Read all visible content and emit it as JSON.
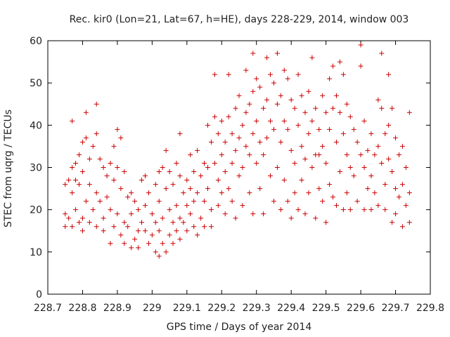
{
  "chart_data": {
    "type": "scatter",
    "title": "Rec. kir0 (Lon=21, Lat=67, h=HE), days 228-229, 2014, window 003",
    "xlabel": "GPS time / Days of year 2014",
    "ylabel": "STEC from uqrg / TECUs",
    "xlim": [
      228.7,
      229.8
    ],
    "ylim": [
      0,
      60
    ],
    "x_ticks": [
      "228.7",
      "228.8",
      "228.9",
      "229",
      "229.1",
      "229.2",
      "229.3",
      "229.4",
      "229.5",
      "229.6",
      "229.7",
      "229.8"
    ],
    "y_ticks": [
      "0",
      "10",
      "20",
      "30",
      "40",
      "50",
      "60"
    ],
    "grid": false,
    "marker": "+",
    "color": "#cc0000",
    "series": [
      {
        "points": [
          [
            228.75,
            26
          ],
          [
            228.75,
            19
          ],
          [
            228.75,
            16
          ],
          [
            228.76,
            27
          ],
          [
            228.76,
            18
          ],
          [
            228.77,
            41
          ],
          [
            228.77,
            30
          ],
          [
            228.77,
            24
          ],
          [
            228.77,
            16
          ],
          [
            228.78,
            31
          ],
          [
            228.78,
            27
          ],
          [
            228.78,
            20
          ],
          [
            228.79,
            33
          ],
          [
            228.79,
            26
          ],
          [
            228.79,
            17
          ],
          [
            228.8,
            36
          ],
          [
            228.8,
            29
          ],
          [
            228.8,
            18
          ],
          [
            228.8,
            15
          ],
          [
            228.81,
            43
          ],
          [
            228.81,
            37
          ],
          [
            228.81,
            22
          ],
          [
            228.82,
            32
          ],
          [
            228.82,
            26
          ],
          [
            228.82,
            17
          ],
          [
            228.83,
            35
          ],
          [
            228.83,
            20
          ],
          [
            228.84,
            45
          ],
          [
            228.84,
            38
          ],
          [
            228.84,
            24
          ],
          [
            228.84,
            16
          ],
          [
            228.85,
            32
          ],
          [
            228.85,
            22
          ],
          [
            228.86,
            30
          ],
          [
            228.86,
            18
          ],
          [
            228.86,
            15
          ],
          [
            228.87,
            28
          ],
          [
            228.87,
            23
          ],
          [
            228.88,
            31
          ],
          [
            228.88,
            20
          ],
          [
            228.88,
            12
          ],
          [
            228.89,
            35
          ],
          [
            228.89,
            27
          ],
          [
            228.89,
            16
          ],
          [
            228.9,
            39
          ],
          [
            228.9,
            30
          ],
          [
            228.9,
            19
          ],
          [
            228.91,
            37
          ],
          [
            228.91,
            25
          ],
          [
            228.91,
            14
          ],
          [
            228.92,
            29
          ],
          [
            228.92,
            17
          ],
          [
            228.92,
            12
          ],
          [
            228.93,
            23
          ],
          [
            228.93,
            16
          ],
          [
            228.94,
            24
          ],
          [
            228.94,
            19
          ],
          [
            228.94,
            11
          ],
          [
            228.95,
            22
          ],
          [
            228.95,
            13
          ],
          [
            228.96,
            20
          ],
          [
            228.96,
            15
          ],
          [
            228.96,
            11
          ],
          [
            228.97,
            27
          ],
          [
            228.97,
            17
          ],
          [
            228.98,
            28
          ],
          [
            228.98,
            21
          ],
          [
            228.98,
            15
          ],
          [
            228.99,
            24
          ],
          [
            228.99,
            12
          ],
          [
            229.0,
            19
          ],
          [
            229.0,
            14
          ],
          [
            229.01,
            26
          ],
          [
            229.01,
            17
          ],
          [
            229.01,
            10
          ],
          [
            229.02,
            29
          ],
          [
            229.02,
            22
          ],
          [
            229.02,
            15
          ],
          [
            229.02,
            9
          ],
          [
            229.03,
            30
          ],
          [
            229.03,
            18
          ],
          [
            229.03,
            12
          ],
          [
            229.04,
            34
          ],
          [
            229.04,
            25
          ],
          [
            229.04,
            10
          ],
          [
            229.05,
            29
          ],
          [
            229.05,
            20
          ],
          [
            229.05,
            14
          ],
          [
            229.06,
            26
          ],
          [
            229.06,
            17
          ],
          [
            229.06,
            12
          ],
          [
            229.07,
            31
          ],
          [
            229.07,
            21
          ],
          [
            229.07,
            15
          ],
          [
            229.08,
            38
          ],
          [
            229.08,
            28
          ],
          [
            229.08,
            18
          ],
          [
            229.08,
            13
          ],
          [
            229.09,
            24
          ],
          [
            229.09,
            17
          ],
          [
            229.1,
            27
          ],
          [
            229.1,
            21
          ],
          [
            229.1,
            15
          ],
          [
            229.11,
            33
          ],
          [
            229.11,
            25
          ],
          [
            229.11,
            19
          ],
          [
            229.12,
            29
          ],
          [
            229.12,
            22
          ],
          [
            229.12,
            16
          ],
          [
            229.13,
            34
          ],
          [
            229.13,
            24
          ],
          [
            229.13,
            14
          ],
          [
            229.14,
            28
          ],
          [
            229.14,
            18
          ],
          [
            229.15,
            31
          ],
          [
            229.15,
            22
          ],
          [
            229.15,
            16
          ],
          [
            229.16,
            40
          ],
          [
            229.16,
            30
          ],
          [
            229.16,
            25
          ],
          [
            229.17,
            36
          ],
          [
            229.17,
            20
          ],
          [
            229.17,
            16
          ],
          [
            229.18,
            52
          ],
          [
            229.18,
            42
          ],
          [
            229.18,
            31
          ],
          [
            229.19,
            38
          ],
          [
            229.19,
            27
          ],
          [
            229.19,
            21
          ],
          [
            229.2,
            41
          ],
          [
            229.2,
            33
          ],
          [
            229.2,
            24
          ],
          [
            229.21,
            36
          ],
          [
            229.21,
            29
          ],
          [
            229.21,
            19
          ],
          [
            229.22,
            52
          ],
          [
            229.22,
            42
          ],
          [
            229.22,
            25
          ],
          [
            229.23,
            38
          ],
          [
            229.23,
            31
          ],
          [
            229.23,
            22
          ],
          [
            229.24,
            44
          ],
          [
            229.24,
            34
          ],
          [
            229.24,
            18
          ],
          [
            229.25,
            47
          ],
          [
            229.25,
            37
          ],
          [
            229.25,
            28
          ],
          [
            229.26,
            40
          ],
          [
            229.26,
            30
          ],
          [
            229.26,
            21
          ],
          [
            229.27,
            53
          ],
          [
            229.27,
            43
          ],
          [
            229.27,
            35
          ],
          [
            229.28,
            45
          ],
          [
            229.28,
            33
          ],
          [
            229.28,
            24
          ],
          [
            229.29,
            57
          ],
          [
            229.29,
            48
          ],
          [
            229.29,
            38
          ],
          [
            229.29,
            19
          ],
          [
            229.3,
            51
          ],
          [
            229.3,
            41
          ],
          [
            229.3,
            31
          ],
          [
            229.31,
            49
          ],
          [
            229.31,
            36
          ],
          [
            229.31,
            25
          ],
          [
            229.32,
            44
          ],
          [
            229.32,
            33
          ],
          [
            229.32,
            19
          ],
          [
            229.33,
            56
          ],
          [
            229.33,
            46
          ],
          [
            229.33,
            37
          ],
          [
            229.34,
            52
          ],
          [
            229.34,
            41
          ],
          [
            229.34,
            28
          ],
          [
            229.35,
            50
          ],
          [
            229.35,
            39
          ],
          [
            229.35,
            22
          ],
          [
            229.36,
            57
          ],
          [
            229.36,
            45
          ],
          [
            229.36,
            30
          ],
          [
            229.37,
            47
          ],
          [
            229.37,
            36
          ],
          [
            229.37,
            20
          ],
          [
            229.38,
            53
          ],
          [
            229.38,
            41
          ],
          [
            229.38,
            27
          ],
          [
            229.39,
            51
          ],
          [
            229.39,
            39
          ],
          [
            229.39,
            22
          ],
          [
            229.4,
            46
          ],
          [
            229.4,
            34
          ],
          [
            229.4,
            18
          ],
          [
            229.41,
            44
          ],
          [
            229.41,
            31
          ],
          [
            229.41,
            24
          ],
          [
            229.42,
            52
          ],
          [
            229.42,
            40
          ],
          [
            229.42,
            20
          ],
          [
            229.43,
            47
          ],
          [
            229.43,
            35
          ],
          [
            229.43,
            27
          ],
          [
            229.44,
            43
          ],
          [
            229.44,
            32
          ],
          [
            229.44,
            19
          ],
          [
            229.45,
            48
          ],
          [
            229.45,
            38
          ],
          [
            229.45,
            24
          ],
          [
            229.46,
            56
          ],
          [
            229.46,
            41
          ],
          [
            229.46,
            30
          ],
          [
            229.47,
            44
          ],
          [
            229.47,
            33
          ],
          [
            229.47,
            18
          ],
          [
            229.48,
            39
          ],
          [
            229.48,
            33
          ],
          [
            229.48,
            25
          ],
          [
            229.49,
            47
          ],
          [
            229.49,
            35
          ],
          [
            229.49,
            22
          ],
          [
            229.5,
            43
          ],
          [
            229.5,
            31
          ],
          [
            229.5,
            17
          ],
          [
            229.51,
            51
          ],
          [
            229.51,
            39
          ],
          [
            229.51,
            26
          ],
          [
            229.52,
            54
          ],
          [
            229.52,
            44
          ],
          [
            229.52,
            23
          ],
          [
            229.53,
            47
          ],
          [
            229.53,
            36
          ],
          [
            229.53,
            21
          ],
          [
            229.54,
            55
          ],
          [
            229.54,
            43
          ],
          [
            229.54,
            29
          ],
          [
            229.55,
            52
          ],
          [
            229.55,
            38
          ],
          [
            229.55,
            20
          ],
          [
            229.56,
            45
          ],
          [
            229.56,
            33
          ],
          [
            229.56,
            24
          ],
          [
            229.57,
            42
          ],
          [
            229.57,
            30
          ],
          [
            229.57,
            20
          ],
          [
            229.58,
            39
          ],
          [
            229.58,
            28
          ],
          [
            229.59,
            36
          ],
          [
            229.59,
            22
          ],
          [
            229.6,
            59
          ],
          [
            229.6,
            54
          ],
          [
            229.6,
            33
          ],
          [
            229.61,
            41
          ],
          [
            229.61,
            30
          ],
          [
            229.61,
            20
          ],
          [
            229.62,
            34
          ],
          [
            229.62,
            25
          ],
          [
            229.63,
            38
          ],
          [
            229.63,
            28
          ],
          [
            229.63,
            20
          ],
          [
            229.64,
            33
          ],
          [
            229.64,
            24
          ],
          [
            229.65,
            46
          ],
          [
            229.65,
            35
          ],
          [
            229.65,
            21
          ],
          [
            229.66,
            57
          ],
          [
            229.66,
            44
          ],
          [
            229.66,
            31
          ],
          [
            229.67,
            38
          ],
          [
            229.67,
            26
          ],
          [
            229.67,
            20
          ],
          [
            229.68,
            52
          ],
          [
            229.68,
            40
          ],
          [
            229.68,
            32
          ],
          [
            229.69,
            44
          ],
          [
            229.69,
            29
          ],
          [
            229.69,
            17
          ],
          [
            229.7,
            37
          ],
          [
            229.7,
            25
          ],
          [
            229.7,
            19
          ],
          [
            229.71,
            33
          ],
          [
            229.71,
            23
          ],
          [
            229.72,
            35
          ],
          [
            229.72,
            26
          ],
          [
            229.72,
            16
          ],
          [
            229.73,
            30
          ],
          [
            229.73,
            21
          ],
          [
            229.74,
            43
          ],
          [
            229.74,
            24
          ],
          [
            229.74,
            17
          ]
        ]
      }
    ]
  }
}
